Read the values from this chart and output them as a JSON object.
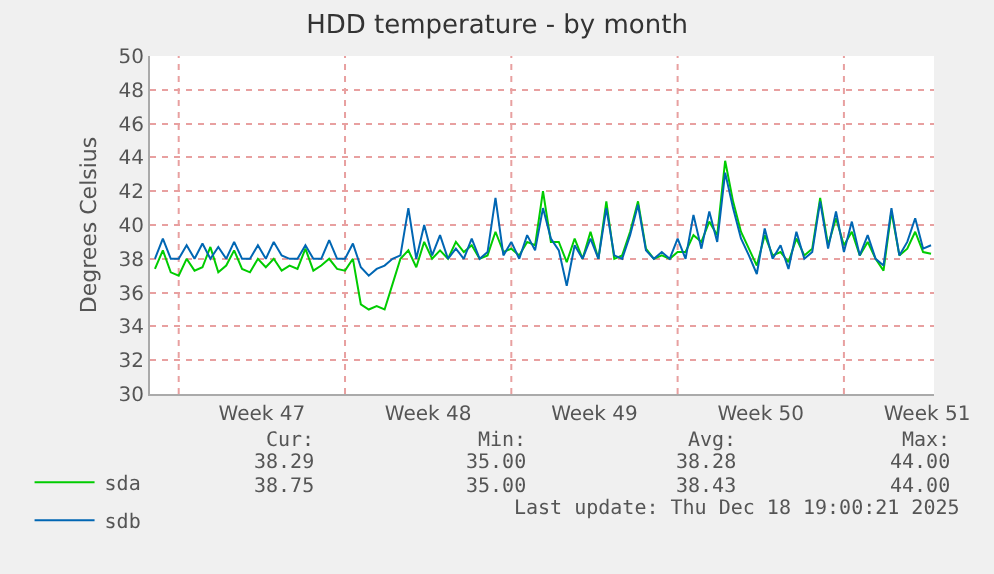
{
  "chart_data": {
    "type": "line",
    "title": "HDD temperature - by month",
    "ylabel": "Degrees Celsius",
    "x": [
      "2025-11-16T00:00",
      "2025-11-16T08:00",
      "2025-11-16T16:00",
      "2025-11-17T00:00",
      "2025-11-17T08:00",
      "2025-11-17T16:00",
      "2025-11-18T00:00",
      "2025-11-18T08:00",
      "2025-11-18T16:00",
      "2025-11-19T00:00",
      "2025-11-19T08:00",
      "2025-11-19T16:00",
      "2025-11-20T00:00",
      "2025-11-20T08:00",
      "2025-11-20T16:00",
      "2025-11-21T00:00",
      "2025-11-21T08:00",
      "2025-11-21T16:00",
      "2025-11-22T00:00",
      "2025-11-22T08:00",
      "2025-11-22T16:00",
      "2025-11-23T00:00",
      "2025-11-23T08:00",
      "2025-11-23T16:00",
      "2025-11-24T00:00",
      "2025-11-24T08:00",
      "2025-11-24T16:00",
      "2025-11-25T00:00",
      "2025-11-25T08:00",
      "2025-11-25T16:00",
      "2025-11-26T00:00",
      "2025-11-26T08:00",
      "2025-11-26T16:00",
      "2025-11-27T00:00",
      "2025-11-27T08:00",
      "2025-11-27T16:00",
      "2025-11-28T00:00",
      "2025-11-28T08:00",
      "2025-11-28T16:00",
      "2025-11-29T00:00",
      "2025-11-29T08:00",
      "2025-11-29T16:00",
      "2025-11-30T00:00",
      "2025-11-30T08:00",
      "2025-11-30T16:00",
      "2025-12-01T00:00",
      "2025-12-01T08:00",
      "2025-12-01T16:00",
      "2025-12-02T00:00",
      "2025-12-02T08:00",
      "2025-12-02T16:00",
      "2025-12-03T00:00",
      "2025-12-03T08:00",
      "2025-12-03T16:00",
      "2025-12-04T00:00",
      "2025-12-04T08:00",
      "2025-12-04T16:00",
      "2025-12-05T00:00",
      "2025-12-05T08:00",
      "2025-12-05T16:00",
      "2025-12-06T00:00",
      "2025-12-06T08:00",
      "2025-12-06T16:00",
      "2025-12-07T00:00",
      "2025-12-07T08:00",
      "2025-12-07T16:00",
      "2025-12-08T00:00",
      "2025-12-08T08:00",
      "2025-12-08T16:00",
      "2025-12-09T00:00",
      "2025-12-09T08:00",
      "2025-12-09T16:00",
      "2025-12-10T00:00",
      "2025-12-10T08:00",
      "2025-12-10T16:00",
      "2025-12-11T00:00",
      "2025-12-11T08:00",
      "2025-12-11T16:00",
      "2025-12-12T00:00",
      "2025-12-12T08:00",
      "2025-12-12T16:00",
      "2025-12-13T00:00",
      "2025-12-13T08:00",
      "2025-12-13T16:00",
      "2025-12-14T00:00",
      "2025-12-14T08:00",
      "2025-12-14T16:00",
      "2025-12-15T00:00",
      "2025-12-15T08:00",
      "2025-12-15T16:00",
      "2025-12-16T00:00",
      "2025-12-16T08:00",
      "2025-12-16T16:00",
      "2025-12-17T00:00",
      "2025-12-17T08:00",
      "2025-12-17T16:00",
      "2025-12-18T00:00",
      "2025-12-18T08:00",
      "2025-12-18T16:00"
    ],
    "series": [
      {
        "name": "sda",
        "color": "#00cc00",
        "values": [
          37.4,
          38.5,
          37.2,
          37,
          38,
          37.3,
          37.5,
          38.7,
          37.2,
          37.6,
          38.5,
          37.4,
          37.2,
          38,
          37.5,
          38,
          37.3,
          37.6,
          37.4,
          38.6,
          37.3,
          37.6,
          38,
          37.4,
          37.3,
          38,
          35.3,
          35,
          35.2,
          35,
          36.5,
          38,
          38.5,
          37.5,
          39,
          38,
          38.5,
          38,
          39,
          38.4,
          38.8,
          38,
          38.2,
          39.6,
          38.4,
          38.6,
          38.2,
          39,
          38.8,
          42,
          39,
          39,
          37.8,
          39.2,
          38,
          39.6,
          38,
          41.4,
          38,
          38.2,
          39.6,
          41.4,
          38.6,
          38,
          38.2,
          38,
          38.4,
          38.4,
          39.4,
          39,
          40.2,
          39.4,
          43.8,
          41.4,
          39.6,
          38.6,
          37.6,
          39.4,
          38.2,
          38.4,
          37.8,
          39.2,
          38.2,
          38.6,
          41.6,
          38.8,
          40.4,
          38.8,
          39.6,
          38.2,
          39,
          38,
          37.3,
          40.8,
          38.2,
          38.6,
          39.6,
          38.4,
          38.3
        ]
      },
      {
        "name": "sdb",
        "color": "#0066b3",
        "values": [
          38,
          39.2,
          38,
          38,
          38.8,
          38,
          38.9,
          38,
          38.7,
          38,
          39,
          38,
          38,
          38.8,
          38,
          39,
          38.2,
          38,
          38,
          38.8,
          38,
          38,
          39.1,
          38,
          38,
          38.9,
          37.5,
          37,
          37.4,
          37.6,
          38,
          38.2,
          41,
          38,
          40,
          38.2,
          39.4,
          38,
          38.6,
          38,
          39.2,
          38,
          38.4,
          41.6,
          38.2,
          39,
          38,
          39.4,
          38.5,
          41,
          39.2,
          38.5,
          36.4,
          38.8,
          38,
          39.2,
          38,
          41,
          38.2,
          38,
          39.4,
          41.2,
          38.5,
          38,
          38.4,
          38,
          39.2,
          38,
          40.6,
          38.6,
          40.8,
          39,
          43.1,
          41,
          39.2,
          38.2,
          37.1,
          39.8,
          38,
          38.8,
          37.4,
          39.6,
          38,
          38.4,
          41.4,
          38.6,
          40.8,
          38.4,
          40.2,
          38.2,
          39.4,
          38,
          37.6,
          41,
          38.2,
          39,
          40.4,
          38.6,
          38.8
        ]
      }
    ],
    "xlim": [
      "2025-11-15T19:00",
      "2025-12-18T19:00"
    ],
    "xticks": [
      {
        "value": "2025-11-17T00:00",
        "label": null
      },
      {
        "value": "2025-11-20T12:00",
        "label": "Week 47"
      },
      {
        "value": "2025-11-24T00:00",
        "label": null
      },
      {
        "value": "2025-11-27T12:00",
        "label": "Week 48"
      },
      {
        "value": "2025-12-01T00:00",
        "label": null
      },
      {
        "value": "2025-12-04T12:00",
        "label": "Week 49"
      },
      {
        "value": "2025-12-08T00:00",
        "label": null
      },
      {
        "value": "2025-12-11T12:00",
        "label": "Week 50"
      },
      {
        "value": "2025-12-15T00:00",
        "label": null
      },
      {
        "value": "2025-12-18T12:00",
        "label": "Week 51"
      }
    ],
    "ylim": [
      30,
      50
    ],
    "yticks": [
      30,
      32,
      34,
      36,
      38,
      40,
      42,
      44,
      46,
      48,
      50
    ],
    "grid": true,
    "legend": "bottom left",
    "marker": "none",
    "line_style": "solid",
    "annotations": [
      "Cur:",
      "Min:",
      "Avg:",
      "Max:",
      "38.29",
      "35.00",
      "38.28",
      "44.00",
      "38.75",
      "35.00",
      "38.43",
      "44.00",
      "Last update: Thu Dec 18 19:00:21 2025"
    ]
  }
}
